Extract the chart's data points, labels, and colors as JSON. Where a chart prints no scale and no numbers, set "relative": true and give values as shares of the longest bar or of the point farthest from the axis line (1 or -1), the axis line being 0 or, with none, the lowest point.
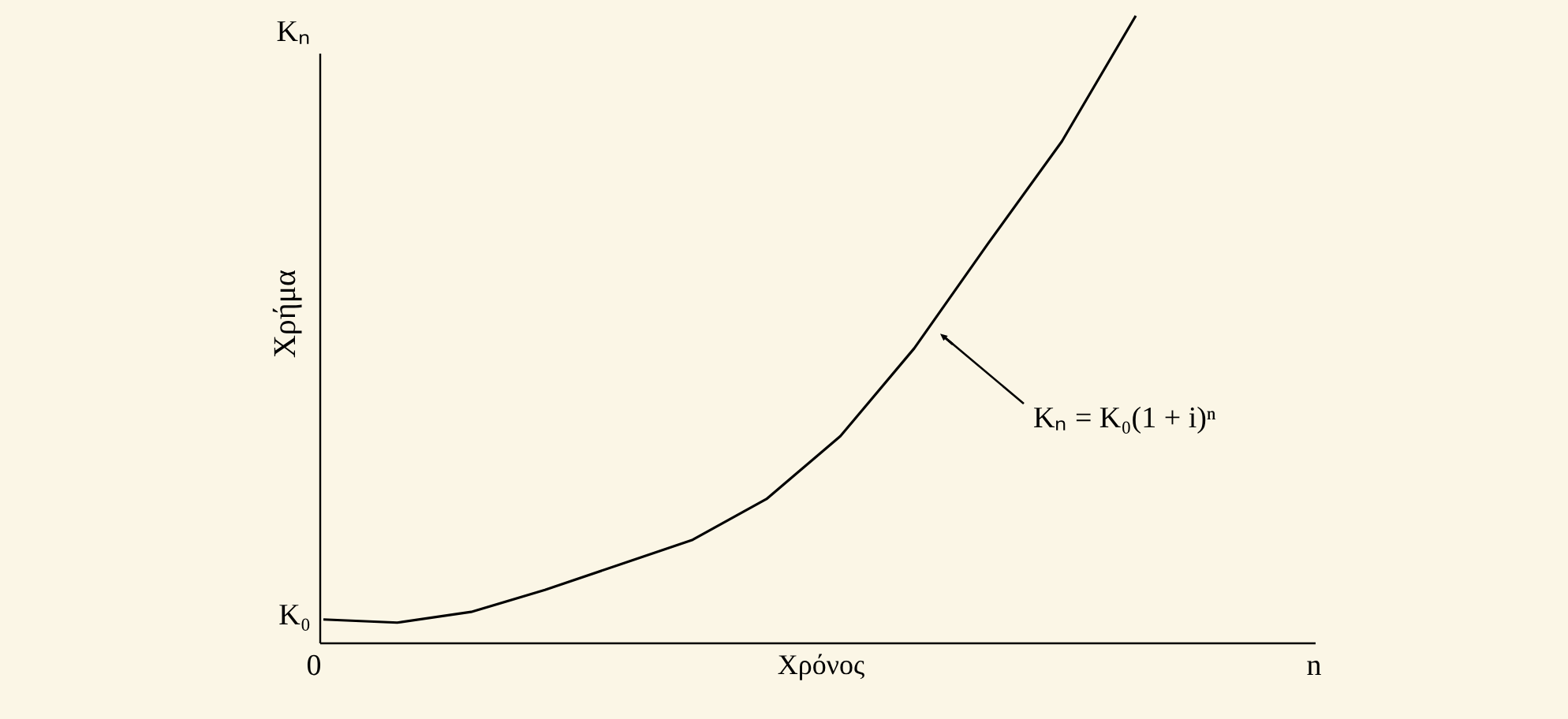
{
  "chart_data": {
    "type": "line",
    "relative": true,
    "xlabel": "Χρόνος",
    "ylabel": "Χρήμα",
    "categories": [
      null,
      null,
      null,
      null,
      null,
      null,
      null,
      null,
      null,
      null,
      null,
      null
    ],
    "series": [
      {
        "color": "#000000",
        "values": [
          0.038,
          0.033,
          0.05,
          0.085,
          0.125,
          0.165,
          0.23,
          0.33,
          0.47,
          0.637,
          0.8,
          1.0
        ]
      }
    ],
    "annotations": [
      "Kₙ",
      "K₀",
      "0",
      "Kₙ = K₀(1 + i)ⁿ",
      "n"
    ],
    "marker": "none",
    "line_style": "solid",
    "grid": false
  }
}
